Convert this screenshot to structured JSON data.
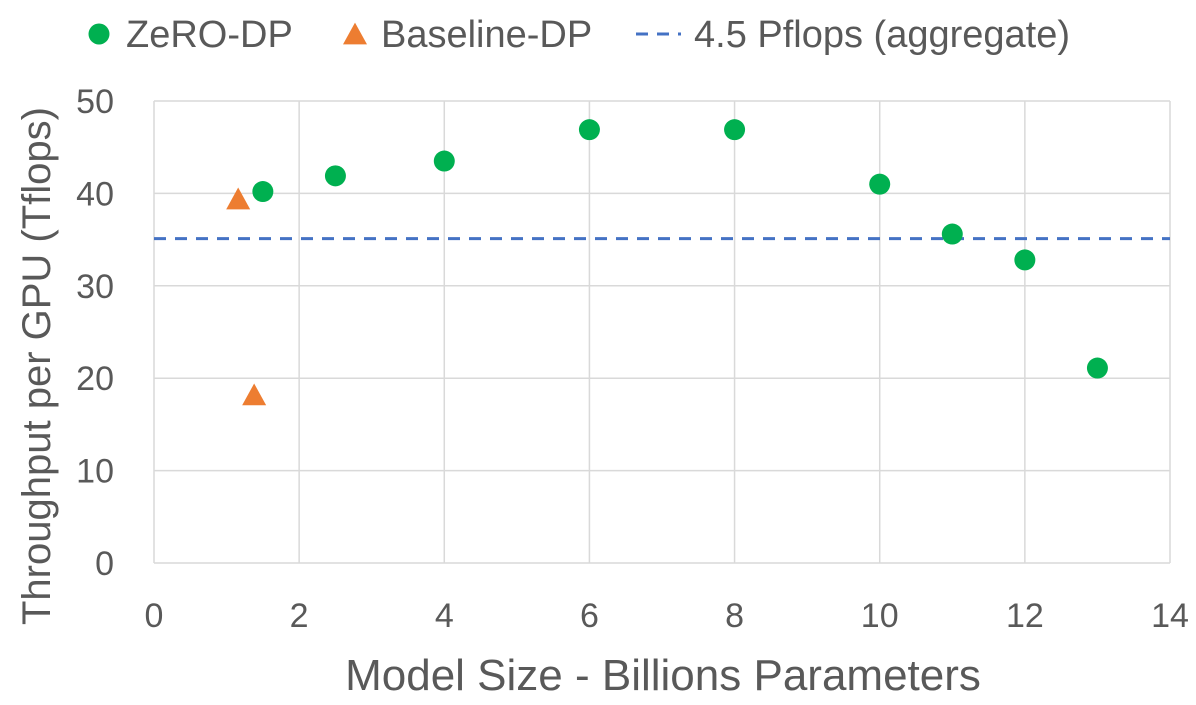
{
  "chart_data": {
    "type": "scatter",
    "title": "",
    "xlabel": "Model Size - Billions Parameters",
    "ylabel": "Throughput per GPU (Tflops)",
    "xlim": [
      0,
      14
    ],
    "ylim": [
      0,
      50
    ],
    "x_ticks": [
      0,
      2,
      4,
      6,
      8,
      10,
      12,
      14
    ],
    "y_ticks": [
      0,
      10,
      20,
      30,
      40,
      50
    ],
    "grid": true,
    "legend_position": "top",
    "series": [
      {
        "name": "ZeRO-DP",
        "marker": "circle",
        "color": "#00b050",
        "points": [
          {
            "x": 1.5,
            "y": 40.2
          },
          {
            "x": 2.5,
            "y": 41.9
          },
          {
            "x": 4,
            "y": 43.5
          },
          {
            "x": 6,
            "y": 46.9
          },
          {
            "x": 8,
            "y": 46.9
          },
          {
            "x": 10,
            "y": 41.0
          },
          {
            "x": 11,
            "y": 35.6
          },
          {
            "x": 12,
            "y": 32.8
          },
          {
            "x": 13,
            "y": 21.1
          }
        ]
      },
      {
        "name": "Baseline-DP",
        "marker": "triangle",
        "color": "#ed7d31",
        "points": [
          {
            "x": 1.16,
            "y": 39.4
          },
          {
            "x": 1.38,
            "y": 18.2
          }
        ]
      }
    ],
    "reference_lines": [
      {
        "name": "4.5 Pflops (aggregate)",
        "style": "dashed",
        "color": "#4472c4",
        "y": 35.1
      }
    ]
  }
}
